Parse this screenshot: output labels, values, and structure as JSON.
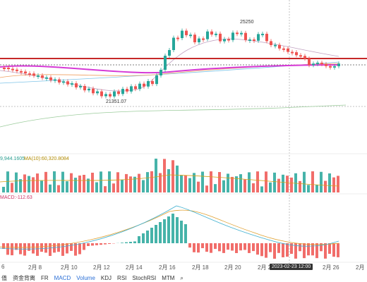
{
  "price_labels": {
    "high": "25250",
    "low": "21351.07"
  },
  "volume_legend": {
    "v1": "9,944.1605",
    "ma10": "MA(10):60,320.8084"
  },
  "macd_legend": {
    "macd": "MACD:-112.63"
  },
  "x_labels": [
    "6",
    "2月 8",
    "2月 10",
    "2月 12",
    "2月 14",
    "2月 16",
    "2月 18",
    "2月 20",
    "2月 2",
    "2月 26",
    "2月"
  ],
  "crosshair_time": "2023-02-23 12:00",
  "tabs": [
    {
      "label": "值",
      "active": false
    },
    {
      "label": "资金背离",
      "active": false
    },
    {
      "label": "FR",
      "active": false
    },
    {
      "label": "MACD",
      "active": true
    },
    {
      "label": "Volume",
      "active": true
    },
    {
      "label": "KDJ",
      "active": false
    },
    {
      "label": "RSI",
      "active": false
    },
    {
      "label": "StochRSI",
      "active": false
    },
    {
      "label": "MTM",
      "active": false
    },
    {
      "label": "⌕",
      "active": false
    }
  ],
  "colors": {
    "up": "#26a69a",
    "down": "#ef5350",
    "resistance": "#c62828",
    "ma_pink": "#d63ad6"
  }
}
